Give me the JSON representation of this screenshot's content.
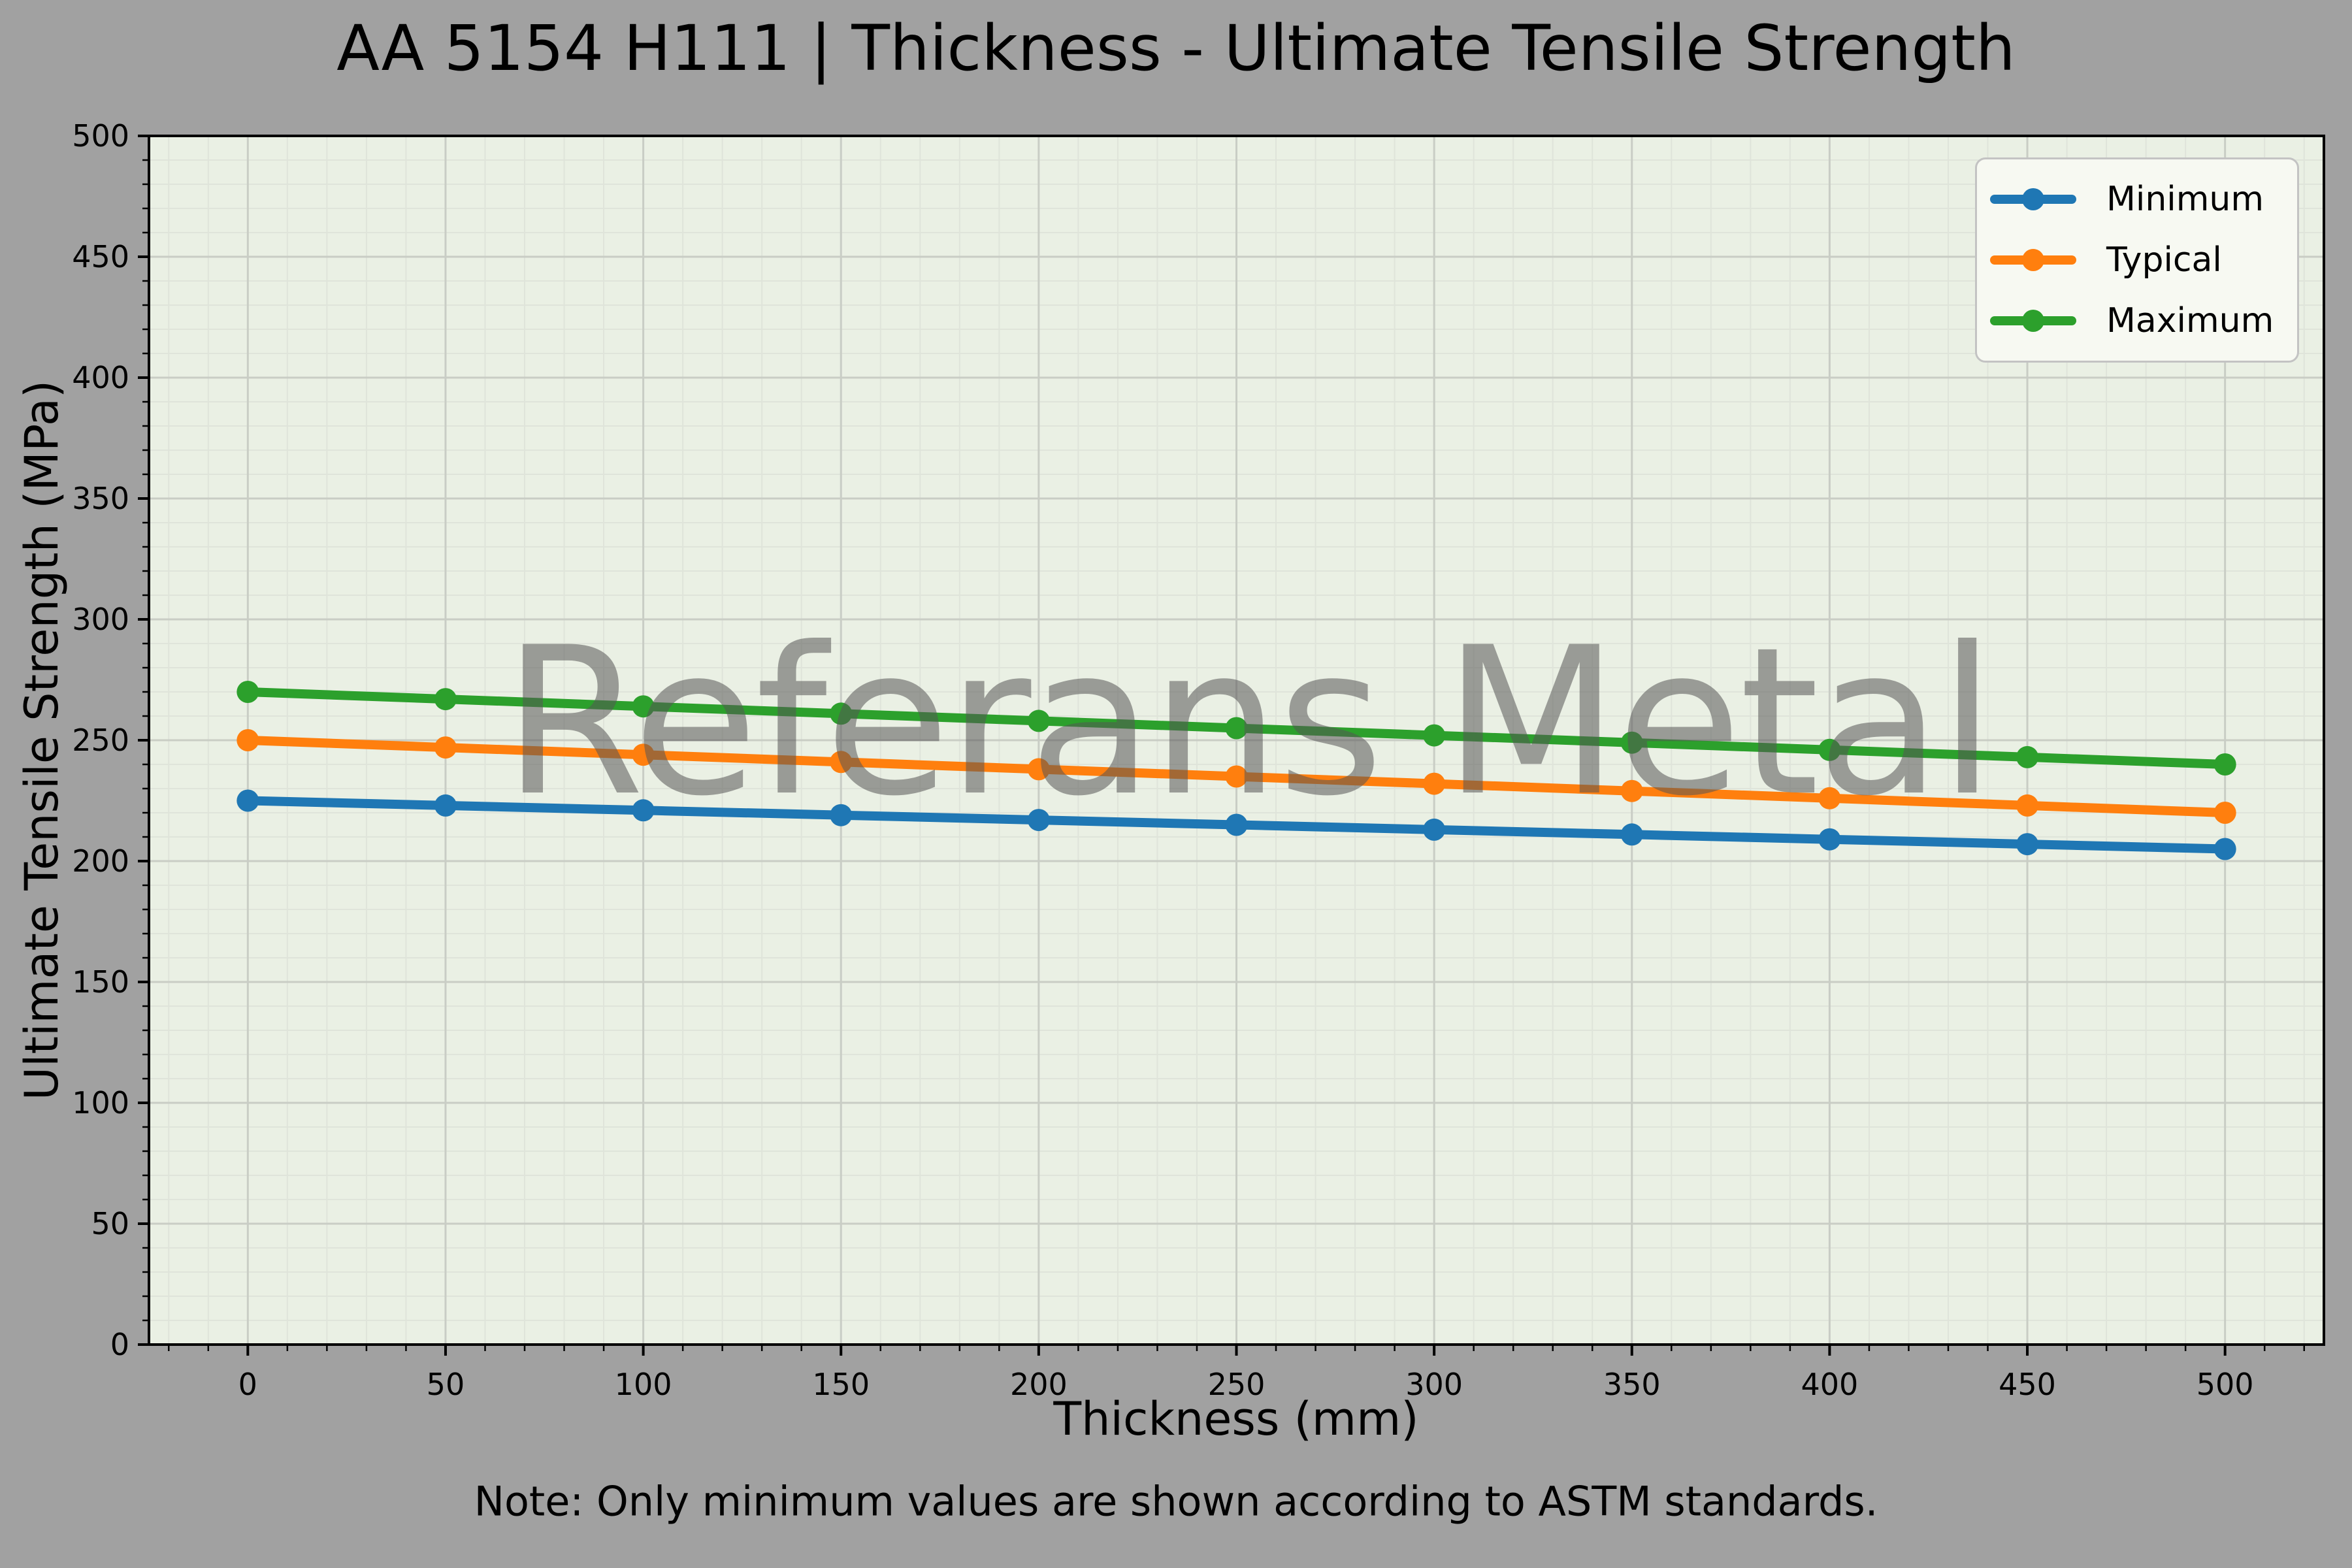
{
  "page": {
    "background": "#a1a1a1",
    "plot_background": "#eaf0e4",
    "spine_color": "#000000",
    "major_grid_color": "#c9cdc5",
    "minor_grid_color": "#dfe4da",
    "watermark_color": "rgba(85,85,85,0.55)"
  },
  "chart_data": {
    "type": "line",
    "title": "AA 5154 H111 | Thickness - Ultimate Tensile Strength",
    "xlabel": "Thickness (mm)",
    "ylabel": "Ultimate Tensile Strength (MPa)",
    "note": "Note: Only minimum values are shown according to ASTM standards.",
    "watermark": "Referans Metal",
    "x": [
      0,
      50,
      100,
      150,
      200,
      250,
      300,
      350,
      400,
      450,
      500
    ],
    "series": [
      {
        "name": "Minimum",
        "color": "#1f77b4",
        "values": [
          225,
          223,
          221,
          219,
          217,
          215,
          213,
          211,
          209,
          207,
          205
        ]
      },
      {
        "name": "Typical",
        "color": "#ff7f0e",
        "values": [
          250,
          247,
          244,
          241,
          238,
          235,
          232,
          229,
          226,
          223,
          220
        ]
      },
      {
        "name": "Maximum",
        "color": "#2ca02c",
        "values": [
          270,
          267,
          264,
          261,
          258,
          255,
          252,
          249,
          246,
          243,
          240
        ]
      }
    ],
    "xlim": [
      -25,
      525
    ],
    "ylim": [
      0,
      500
    ],
    "xticks": [
      0,
      50,
      100,
      150,
      200,
      250,
      300,
      350,
      400,
      450,
      500
    ],
    "yticks": [
      0,
      50,
      100,
      150,
      200,
      250,
      300,
      350,
      400,
      450,
      500
    ],
    "minor_tick_step": 10,
    "grid": true,
    "legend": {
      "position": "upper right",
      "entries": [
        "Minimum",
        "Typical",
        "Maximum"
      ]
    }
  }
}
